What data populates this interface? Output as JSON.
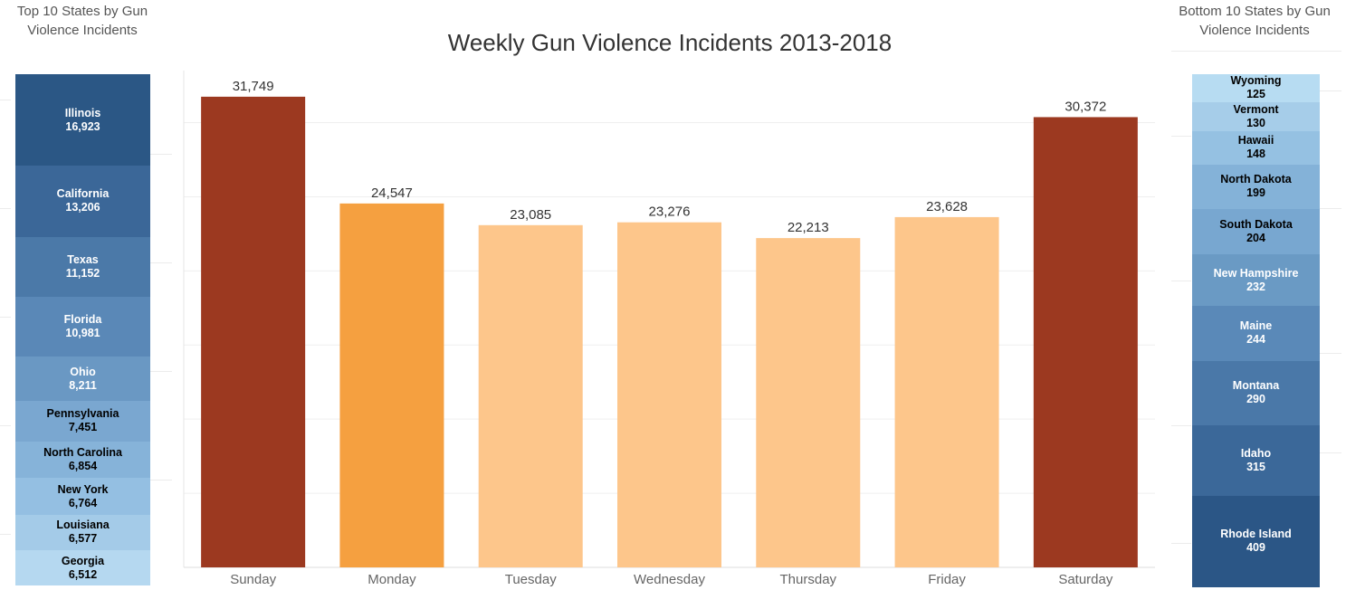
{
  "left_panel": {
    "title_line1": "Top 10 States by Gun",
    "title_line2": "Violence Incidents",
    "states": [
      {
        "name": "Illinois",
        "value": "16,923",
        "count": 16923,
        "color": "#2b5785",
        "text": "#ffffff"
      },
      {
        "name": "California",
        "value": "13,206",
        "count": 13206,
        "color": "#3b6798",
        "text": "#ffffff"
      },
      {
        "name": "Texas",
        "value": "11,152",
        "count": 11152,
        "color": "#4b79a8",
        "text": "#ffffff"
      },
      {
        "name": "Florida",
        "value": "10,981",
        "count": 10981,
        "color": "#5a88b7",
        "text": "#ffffff"
      },
      {
        "name": "Ohio",
        "value": "8,211",
        "count": 8211,
        "color": "#6a98c3",
        "text": "#ffffff"
      },
      {
        "name": "Pennsylvania",
        "value": "7,451",
        "count": 7451,
        "color": "#7aa7d0",
        "text": "#000000"
      },
      {
        "name": "North Carolina",
        "value": "6,854",
        "count": 6854,
        "color": "#86b3d9",
        "text": "#000000"
      },
      {
        "name": "New York",
        "value": "6,764",
        "count": 6764,
        "color": "#94bfe2",
        "text": "#000000"
      },
      {
        "name": "Louisiana",
        "value": "6,577",
        "count": 6577,
        "color": "#a4cbe8",
        "text": "#000000"
      },
      {
        "name": "Georgia",
        "value": "6,512",
        "count": 6512,
        "color": "#b5d8f0",
        "text": "#000000"
      }
    ]
  },
  "right_panel": {
    "title_line1": "Bottom 10 States by Gun",
    "title_line2": "Violence Incidents",
    "states": [
      {
        "name": "Wyoming",
        "value": "125",
        "count": 125,
        "color": "#b7dcf2",
        "text": "#000000"
      },
      {
        "name": "Vermont",
        "value": "130",
        "count": 130,
        "color": "#a6cde9",
        "text": "#000000"
      },
      {
        "name": "Hawaii",
        "value": "148",
        "count": 148,
        "color": "#95c1e2",
        "text": "#000000"
      },
      {
        "name": "North Dakota",
        "value": "199",
        "count": 199,
        "color": "#84b2d8",
        "text": "#000000"
      },
      {
        "name": "South Dakota",
        "value": "204",
        "count": 204,
        "color": "#78a7d0",
        "text": "#000000"
      },
      {
        "name": "New Hampshire",
        "value": "232",
        "count": 232,
        "color": "#6a9ac4",
        "text": "#ffffff"
      },
      {
        "name": "Maine",
        "value": "244",
        "count": 244,
        "color": "#5a89b8",
        "text": "#ffffff"
      },
      {
        "name": "Montana",
        "value": "290",
        "count": 290,
        "color": "#4a78a8",
        "text": "#ffffff"
      },
      {
        "name": "Idaho",
        "value": "315",
        "count": 315,
        "color": "#3b6899",
        "text": "#ffffff"
      },
      {
        "name": "Rhode Island",
        "value": "409",
        "count": 409,
        "color": "#2b5686",
        "text": "#ffffff"
      }
    ]
  },
  "chart_data": {
    "type": "bar",
    "title": "Weekly Gun Violence Incidents 2013-2018",
    "categories": [
      "Sunday",
      "Monday",
      "Tuesday",
      "Wednesday",
      "Thursday",
      "Friday",
      "Saturday"
    ],
    "values": [
      31749,
      24547,
      23085,
      23276,
      22213,
      23628,
      30372
    ],
    "value_labels": [
      "31,749",
      "24,547",
      "23,085",
      "23,276",
      "22,213",
      "23,628",
      "30,372"
    ],
    "colors": [
      "#9c3920",
      "#f5a040",
      "#fdc68b",
      "#fdc68b",
      "#fdc68b",
      "#fdc68b",
      "#9c3920"
    ],
    "xlabel": "",
    "ylabel": "",
    "ylim": [
      0,
      34000
    ],
    "grid": true,
    "legend": "none"
  }
}
